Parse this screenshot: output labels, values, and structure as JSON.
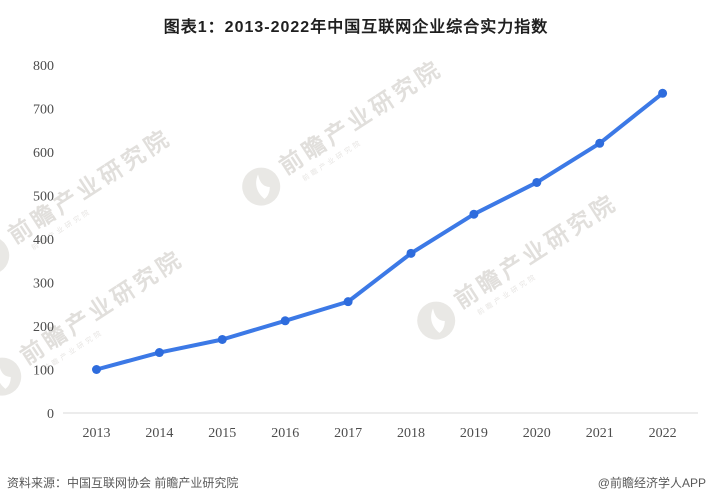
{
  "header": {
    "title": "图表1：2013-2022年中国互联网企业综合实力指数"
  },
  "footer": {
    "source": "资料来源：中国互联网协会 前瞻产业研究院",
    "credit": "@前瞻经济学人APP"
  },
  "watermark": {
    "brand": "前瞻产业研究院",
    "subtext": "前瞻产业研究院",
    "logo": "qianzhan-logo"
  },
  "colors": {
    "line": "#3c79e6",
    "marker": "#2e6cdd",
    "axis_line": "#d9d9d9",
    "axis_text": "#4d4d4d",
    "title_text": "#1f1f1f",
    "footer_text": "#595959"
  },
  "chart_data": {
    "type": "line",
    "title": "图表1：2013-2022年中国互联网企业综合实力指数",
    "categories": [
      "2013",
      "2014",
      "2015",
      "2016",
      "2017",
      "2018",
      "2019",
      "2020",
      "2021",
      "2022"
    ],
    "series": [
      {
        "name": "中国互联网企业综合实力指数",
        "values": [
          100,
          139,
          169,
          212,
          256,
          367,
          457,
          530,
          620,
          735
        ]
      }
    ],
    "xlabel": "",
    "ylabel": "",
    "ylim": [
      0,
      800
    ],
    "ytick_step": 100,
    "yticks": [
      0,
      100,
      200,
      300,
      400,
      500,
      600,
      700,
      800
    ],
    "grid": false,
    "legend": "none",
    "marker": "circle"
  }
}
